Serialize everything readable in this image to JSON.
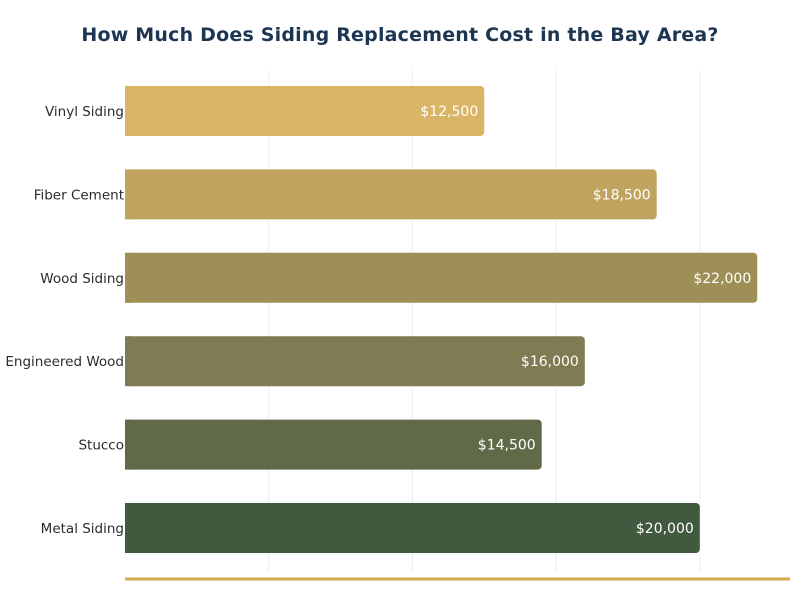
{
  "chart_data": {
    "type": "bar",
    "orientation": "horizontal",
    "title": "How Much Does Siding Replacement Cost in the Bay Area?",
    "categories": [
      "Vinyl Siding",
      "Fiber Cement",
      "Wood Siding",
      "Engineered Wood",
      "Stucco",
      "Metal Siding"
    ],
    "values": [
      12500,
      18500,
      22000,
      16000,
      14500,
      20000
    ],
    "value_labels": [
      "$12,500",
      "$18,500",
      "$22,000",
      "$16,000",
      "$14,500",
      "$20,000"
    ],
    "colors": [
      "#dbb566",
      "#bfa35f",
      "#9e8f57",
      "#7f7b52",
      "#606a48",
      "#41593f"
    ],
    "xlim": [
      0,
      23000
    ],
    "grid_ticks": [
      5000,
      10000,
      15000,
      20000
    ],
    "xlabel": "",
    "ylabel": "",
    "grid": true,
    "axis_color": "#d4a94c"
  }
}
